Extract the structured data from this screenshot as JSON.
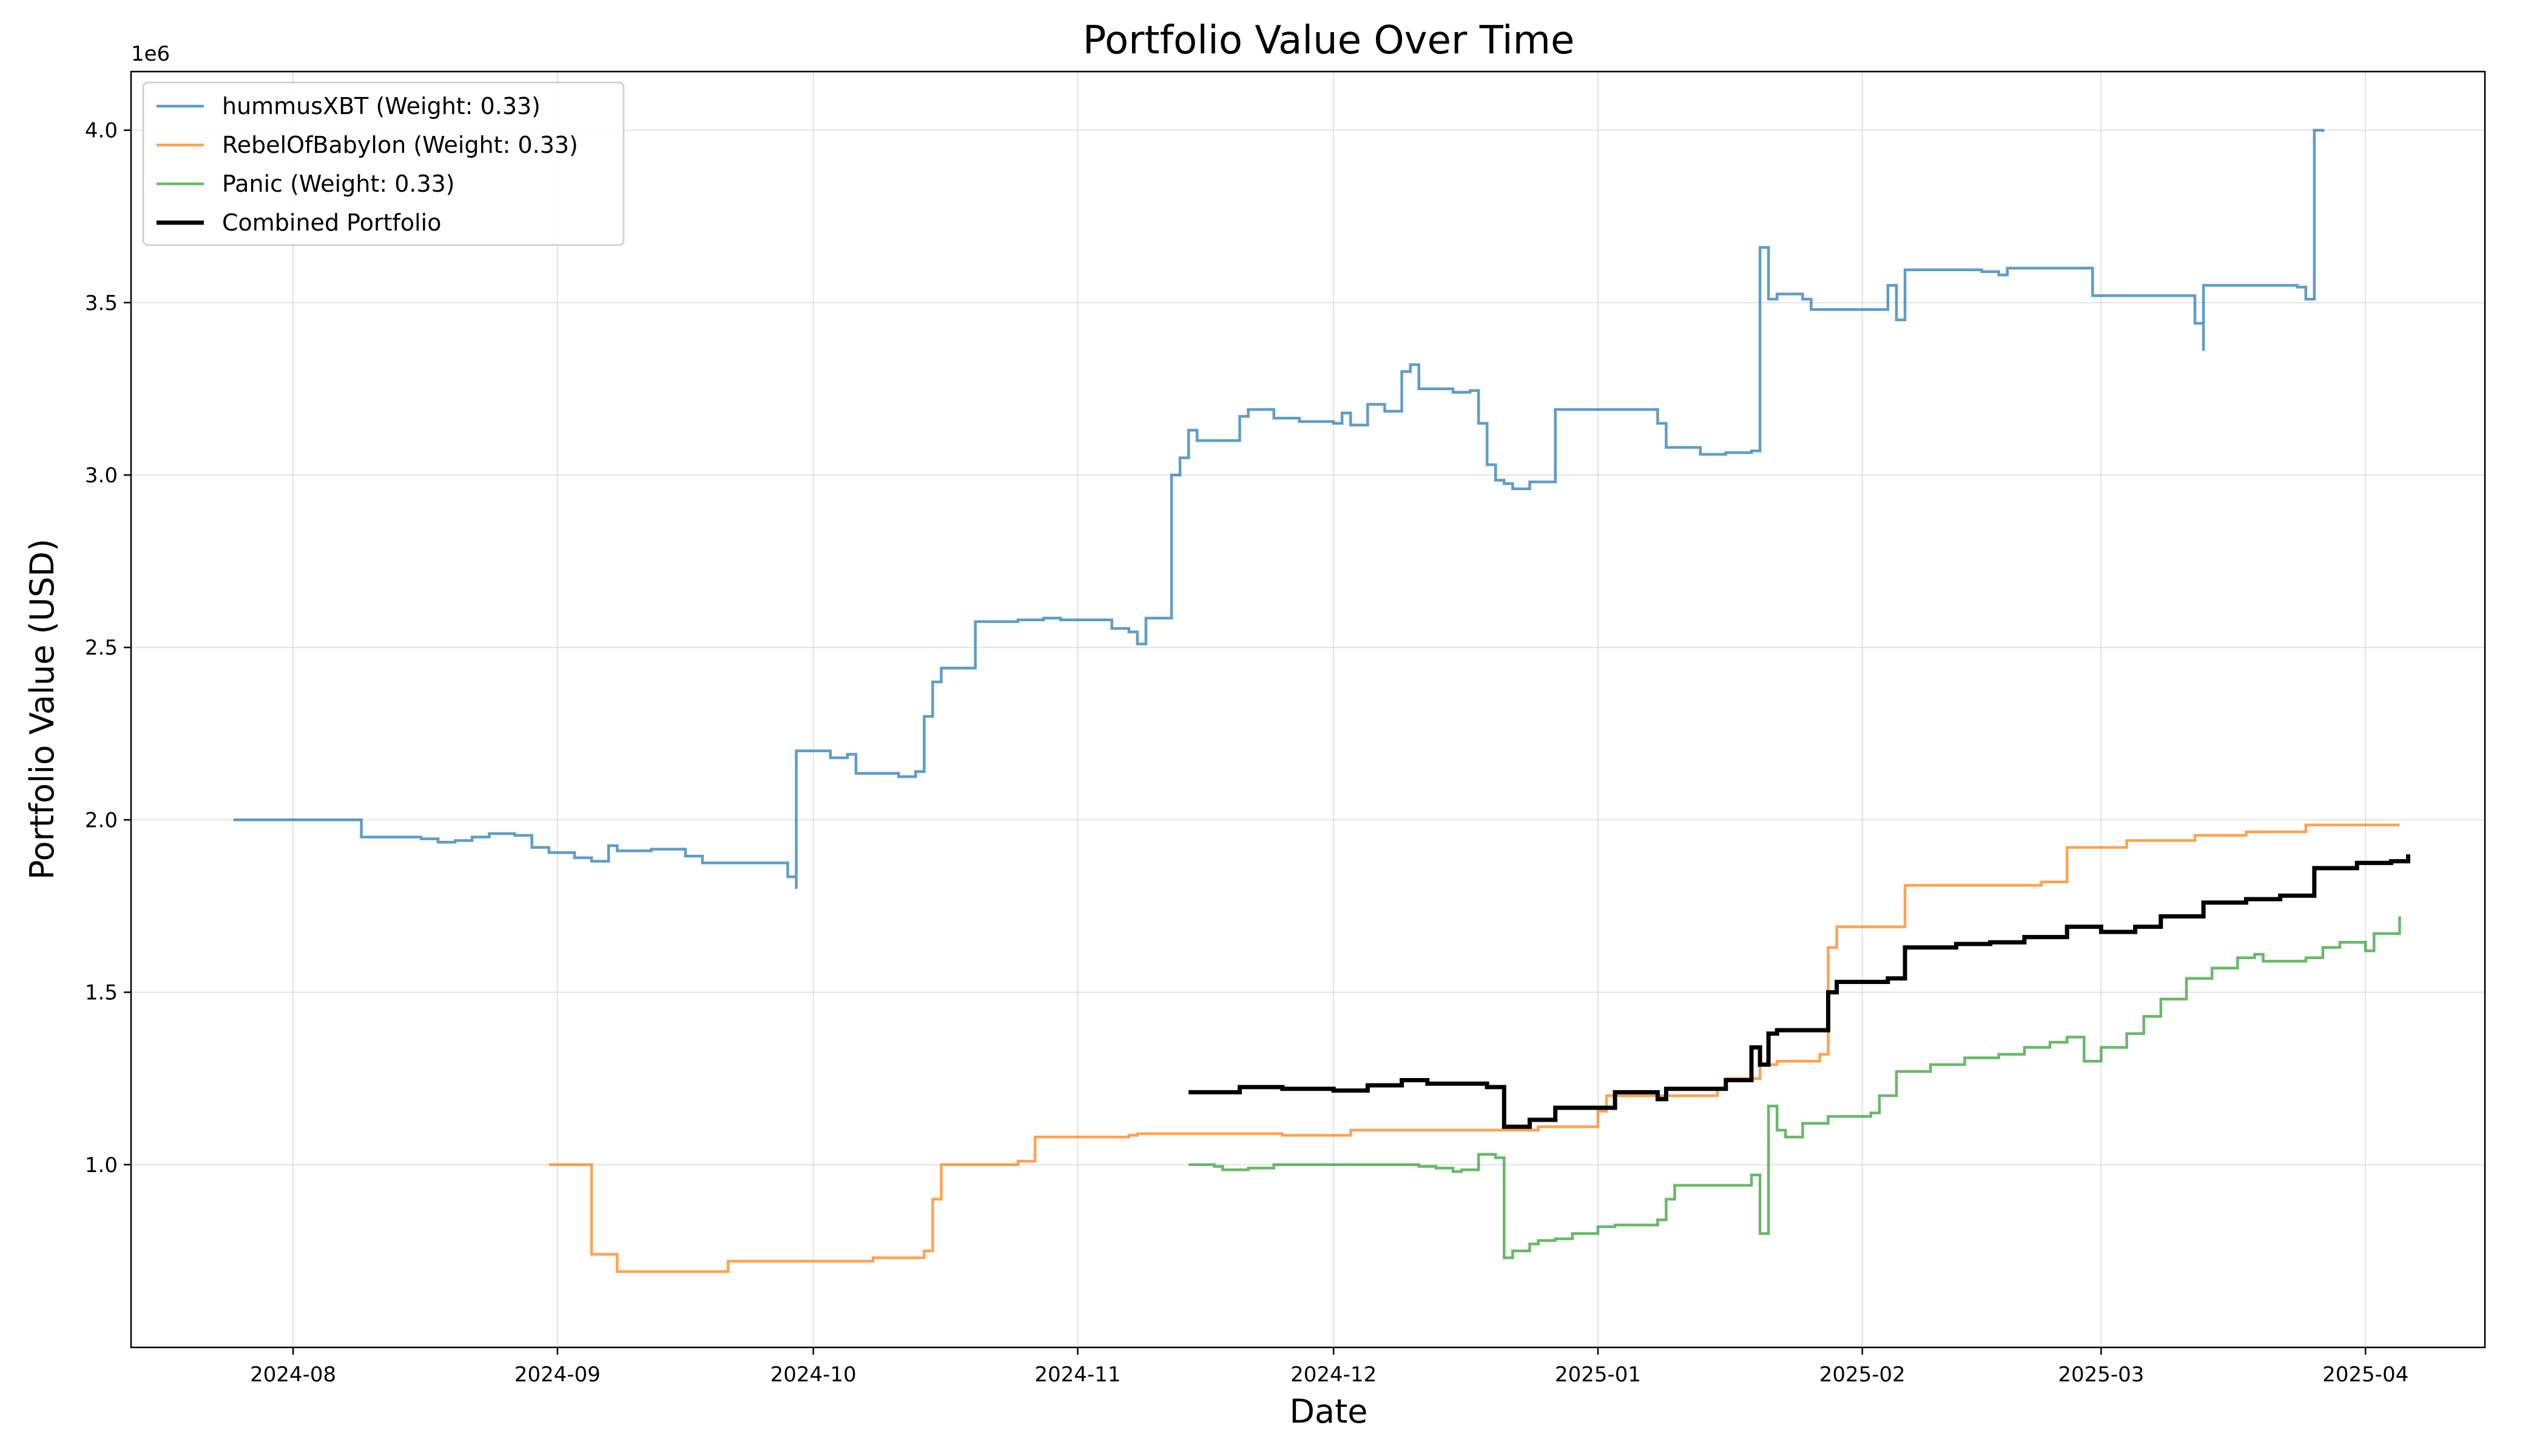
{
  "chart_data": {
    "type": "line",
    "title": "Portfolio Value Over Time",
    "xlabel": "Date",
    "ylabel": "Portfolio Value (USD)",
    "y_offset_label": "1e6",
    "xlim": [
      "2024-07-13",
      "2025-04-15"
    ],
    "ylim": [
      0.47,
      4.17
    ],
    "x_ticks": [
      "2024-08",
      "2024-09",
      "2024-10",
      "2024-11",
      "2024-12",
      "2025-01",
      "2025-02",
      "2025-03",
      "2025-04"
    ],
    "y_ticks": [
      "1.0",
      "1.5",
      "2.0",
      "2.5",
      "3.0",
      "3.5",
      "4.0"
    ],
    "grid": true,
    "legend_position": "top-left",
    "series": [
      {
        "name": "hummusXBT (Weight: 0.33)",
        "color": "#1f77b4",
        "step": true,
        "points": [
          [
            "2024-07-25",
            2.0
          ],
          [
            "2024-08-08",
            2.0
          ],
          [
            "2024-08-09",
            1.96
          ],
          [
            "2024-08-09",
            1.95
          ],
          [
            "2024-08-16",
            1.945
          ],
          [
            "2024-08-18",
            1.935
          ],
          [
            "2024-08-20",
            1.94
          ],
          [
            "2024-08-22",
            1.95
          ],
          [
            "2024-08-24",
            1.96
          ],
          [
            "2024-08-27",
            1.955
          ],
          [
            "2024-08-29",
            1.92
          ],
          [
            "2024-08-31",
            1.905
          ],
          [
            "2024-09-03",
            1.89
          ],
          [
            "2024-09-05",
            1.88
          ],
          [
            "2024-09-07",
            1.925
          ],
          [
            "2024-09-08",
            1.91
          ],
          [
            "2024-09-12",
            1.915
          ],
          [
            "2024-09-16",
            1.895
          ],
          [
            "2024-09-18",
            1.875
          ],
          [
            "2024-09-28",
            1.835
          ],
          [
            "2024-09-29",
            1.8
          ],
          [
            "2024-09-29",
            2.2
          ],
          [
            "2024-10-03",
            2.18
          ],
          [
            "2024-10-05",
            2.19
          ],
          [
            "2024-10-06",
            2.135
          ],
          [
            "2024-10-11",
            2.125
          ],
          [
            "2024-10-13",
            2.14
          ],
          [
            "2024-10-14",
            2.3
          ],
          [
            "2024-10-15",
            2.4
          ],
          [
            "2024-10-16",
            2.44
          ],
          [
            "2024-10-20",
            2.575
          ],
          [
            "2024-10-25",
            2.58
          ],
          [
            "2024-10-28",
            2.585
          ],
          [
            "2024-10-30",
            2.58
          ],
          [
            "2024-11-05",
            2.555
          ],
          [
            "2024-11-07",
            2.545
          ],
          [
            "2024-11-08",
            2.51
          ],
          [
            "2024-11-09",
            2.585
          ],
          [
            "2024-11-12",
            3.0
          ],
          [
            "2024-11-13",
            3.05
          ],
          [
            "2024-11-14",
            3.13
          ],
          [
            "2024-11-15",
            3.1
          ],
          [
            "2024-11-20",
            3.17
          ],
          [
            "2024-11-21",
            3.19
          ],
          [
            "2024-11-24",
            3.165
          ],
          [
            "2024-11-27",
            3.155
          ],
          [
            "2024-12-01",
            3.15
          ],
          [
            "2024-12-02",
            3.18
          ],
          [
            "2024-12-03",
            3.145
          ],
          [
            "2024-12-05",
            3.205
          ],
          [
            "2024-12-07",
            3.185
          ],
          [
            "2024-12-09",
            3.3
          ],
          [
            "2024-12-10",
            3.32
          ],
          [
            "2024-12-11",
            3.25
          ],
          [
            "2024-12-15",
            3.24
          ],
          [
            "2024-12-17",
            3.245
          ],
          [
            "2024-12-18",
            3.15
          ],
          [
            "2024-12-19",
            3.03
          ],
          [
            "2024-12-20",
            2.985
          ],
          [
            "2024-12-21",
            2.975
          ],
          [
            "2024-12-22",
            2.96
          ],
          [
            "2024-12-24",
            2.98
          ],
          [
            "2024-12-27",
            3.19
          ],
          [
            "2025-01-03",
            3.19
          ],
          [
            "2025-01-08",
            3.15
          ],
          [
            "2025-01-09",
            3.08
          ],
          [
            "2025-01-13",
            3.06
          ],
          [
            "2025-01-16",
            3.065
          ],
          [
            "2025-01-19",
            3.07
          ],
          [
            "2025-01-20",
            3.66
          ],
          [
            "2025-01-21",
            3.51
          ],
          [
            "2025-01-22",
            3.525
          ],
          [
            "2025-01-25",
            3.51
          ],
          [
            "2025-01-26",
            3.48
          ],
          [
            "2025-02-04",
            3.55
          ],
          [
            "2025-02-05",
            3.45
          ],
          [
            "2025-02-06",
            3.595
          ],
          [
            "2025-02-15",
            3.59
          ],
          [
            "2025-02-17",
            3.58
          ],
          [
            "2025-02-18",
            3.6
          ],
          [
            "2025-02-27",
            3.6
          ],
          [
            "2025-02-28",
            3.52
          ],
          [
            "2025-03-06",
            3.52
          ],
          [
            "2025-03-10",
            3.52
          ],
          [
            "2025-03-12",
            3.44
          ],
          [
            "2025-03-13",
            3.36
          ],
          [
            "2025-03-13",
            3.55
          ],
          [
            "2025-03-24",
            3.545
          ],
          [
            "2025-03-25",
            3.51
          ],
          [
            "2025-03-26",
            4.0
          ],
          [
            "2025-03-27",
            3.995
          ]
        ]
      },
      {
        "name": "RebelOfBabylon (Weight: 0.33)",
        "color": "#ff7f0e",
        "step": true,
        "points": [
          [
            "2024-08-31",
            1.0
          ],
          [
            "2024-09-05",
            1.0
          ],
          [
            "2024-09-05",
            0.74
          ],
          [
            "2024-09-08",
            0.74
          ],
          [
            "2024-09-08",
            0.69
          ],
          [
            "2024-09-21",
            0.7
          ],
          [
            "2024-09-21",
            0.72
          ],
          [
            "2024-10-08",
            0.72
          ],
          [
            "2024-10-08",
            0.73
          ],
          [
            "2024-10-14",
            0.75
          ],
          [
            "2024-10-15",
            0.9
          ],
          [
            "2024-10-16",
            1.0
          ],
          [
            "2024-10-25",
            1.01
          ],
          [
            "2024-10-27",
            1.08
          ],
          [
            "2024-11-07",
            1.085
          ],
          [
            "2024-11-08",
            1.09
          ],
          [
            "2024-11-25",
            1.085
          ],
          [
            "2024-12-03",
            1.1
          ],
          [
            "2024-12-25",
            1.11
          ],
          [
            "2025-01-01",
            1.155
          ],
          [
            "2025-01-02",
            1.2
          ],
          [
            "2025-01-15",
            1.22
          ],
          [
            "2025-01-16",
            1.25
          ],
          [
            "2025-01-20",
            1.29
          ],
          [
            "2025-01-22",
            1.3
          ],
          [
            "2025-01-27",
            1.32
          ],
          [
            "2025-01-28",
            1.63
          ],
          [
            "2025-01-29",
            1.69
          ],
          [
            "2025-02-06",
            1.81
          ],
          [
            "2025-02-22",
            1.82
          ],
          [
            "2025-02-25",
            1.92
          ],
          [
            "2025-03-04",
            1.94
          ],
          [
            "2025-03-12",
            1.955
          ],
          [
            "2025-03-18",
            1.965
          ],
          [
            "2025-03-25",
            1.985
          ],
          [
            "2025-04-05",
            1.985
          ]
        ]
      },
      {
        "name": "Panic (Weight: 0.33)",
        "color": "#2ca02c",
        "step": true,
        "points": [
          [
            "2024-11-14",
            1.0
          ],
          [
            "2024-11-17",
            0.995
          ],
          [
            "2024-11-18",
            0.985
          ],
          [
            "2024-11-21",
            0.99
          ],
          [
            "2024-11-24",
            1.0
          ],
          [
            "2024-12-11",
            0.995
          ],
          [
            "2024-12-13",
            0.99
          ],
          [
            "2024-12-15",
            0.98
          ],
          [
            "2024-12-16",
            0.985
          ],
          [
            "2024-12-18",
            1.03
          ],
          [
            "2024-12-20",
            1.02
          ],
          [
            "2024-12-21",
            0.73
          ],
          [
            "2024-12-22",
            0.75
          ],
          [
            "2024-12-24",
            0.77
          ],
          [
            "2024-12-25",
            0.78
          ],
          [
            "2024-12-27",
            0.785
          ],
          [
            "2024-12-29",
            0.8
          ],
          [
            "2025-01-01",
            0.82
          ],
          [
            "2025-01-03",
            0.825
          ],
          [
            "2025-01-08",
            0.84
          ],
          [
            "2025-01-09",
            0.9
          ],
          [
            "2025-01-10",
            0.94
          ],
          [
            "2025-01-14",
            0.94
          ],
          [
            "2025-01-19",
            0.97
          ],
          [
            "2025-01-20",
            0.8
          ],
          [
            "2025-01-21",
            1.17
          ],
          [
            "2025-01-22",
            1.1
          ],
          [
            "2025-01-23",
            1.08
          ],
          [
            "2025-01-25",
            1.12
          ],
          [
            "2025-01-28",
            1.14
          ],
          [
            "2025-02-02",
            1.15
          ],
          [
            "2025-02-03",
            1.2
          ],
          [
            "2025-02-05",
            1.27
          ],
          [
            "2025-02-09",
            1.29
          ],
          [
            "2025-02-13",
            1.31
          ],
          [
            "2025-02-17",
            1.32
          ],
          [
            "2025-02-20",
            1.34
          ],
          [
            "2025-02-23",
            1.355
          ],
          [
            "2025-02-25",
            1.37
          ],
          [
            "2025-02-27",
            1.3
          ],
          [
            "2025-03-01",
            1.34
          ],
          [
            "2025-03-04",
            1.38
          ],
          [
            "2025-03-06",
            1.43
          ],
          [
            "2025-03-08",
            1.48
          ],
          [
            "2025-03-11",
            1.54
          ],
          [
            "2025-03-14",
            1.57
          ],
          [
            "2025-03-17",
            1.6
          ],
          [
            "2025-03-19",
            1.61
          ],
          [
            "2025-03-20",
            1.59
          ],
          [
            "2025-03-25",
            1.6
          ],
          [
            "2025-03-27",
            1.63
          ],
          [
            "2025-03-29",
            1.645
          ],
          [
            "2025-04-01",
            1.62
          ],
          [
            "2025-04-02",
            1.67
          ],
          [
            "2025-04-05",
            1.72
          ]
        ]
      },
      {
        "name": "Combined Portfolio",
        "color": "#000000",
        "step": true,
        "thick": true,
        "points": [
          [
            "2024-11-14",
            1.21
          ],
          [
            "2024-11-20",
            1.225
          ],
          [
            "2024-11-25",
            1.22
          ],
          [
            "2024-12-01",
            1.215
          ],
          [
            "2024-12-05",
            1.23
          ],
          [
            "2024-12-09",
            1.245
          ],
          [
            "2024-12-12",
            1.235
          ],
          [
            "2024-12-19",
            1.225
          ],
          [
            "2024-12-21",
            1.11
          ],
          [
            "2024-12-24",
            1.13
          ],
          [
            "2024-12-27",
            1.165
          ],
          [
            "2025-01-03",
            1.21
          ],
          [
            "2025-01-08",
            1.19
          ],
          [
            "2025-01-09",
            1.22
          ],
          [
            "2025-01-16",
            1.245
          ],
          [
            "2025-01-19",
            1.34
          ],
          [
            "2025-01-20",
            1.29
          ],
          [
            "2025-01-21",
            1.38
          ],
          [
            "2025-01-22",
            1.39
          ],
          [
            "2025-01-28",
            1.5
          ],
          [
            "2025-01-29",
            1.53
          ],
          [
            "2025-02-04",
            1.54
          ],
          [
            "2025-02-06",
            1.63
          ],
          [
            "2025-02-12",
            1.64
          ],
          [
            "2025-02-16",
            1.645
          ],
          [
            "2025-02-20",
            1.66
          ],
          [
            "2025-02-25",
            1.69
          ],
          [
            "2025-03-01",
            1.675
          ],
          [
            "2025-03-05",
            1.69
          ],
          [
            "2025-03-08",
            1.72
          ],
          [
            "2025-03-13",
            1.76
          ],
          [
            "2025-03-18",
            1.77
          ],
          [
            "2025-03-22",
            1.78
          ],
          [
            "2025-03-26",
            1.86
          ],
          [
            "2025-03-31",
            1.875
          ],
          [
            "2025-04-04",
            1.88
          ],
          [
            "2025-04-06",
            1.9
          ]
        ]
      }
    ]
  }
}
